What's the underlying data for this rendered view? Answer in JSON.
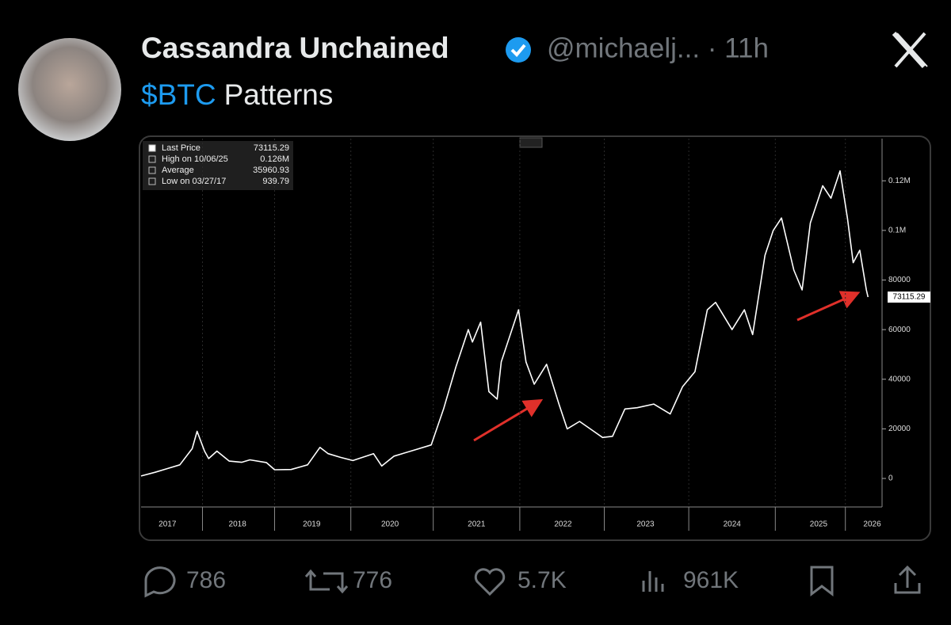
{
  "post": {
    "author": "Cassandra Unchained",
    "meta": "@michaelj... · 11h",
    "cashtag": "$BTC",
    "text": "Patterns",
    "stats": {
      "replies": "786",
      "reposts": "776",
      "likes": "5.7K",
      "views": "961K"
    }
  },
  "chart_data": {
    "type": "line",
    "color": "#ffffff",
    "legend_rows": [
      {
        "label": "Last Price",
        "value": "73115.29"
      },
      {
        "label": "High on 10/06/25",
        "value": "0.126M"
      },
      {
        "label": "Average",
        "value": "35960.93"
      },
      {
        "label": "Low on 03/27/17",
        "value": "939.79"
      }
    ],
    "last_price": 73115.29,
    "x": [
      2017.28,
      2017.45,
      2017.6,
      2017.75,
      2017.9,
      2017.96,
      2018.05,
      2018.1,
      2018.2,
      2018.35,
      2018.5,
      2018.6,
      2018.8,
      2018.9,
      2019.1,
      2019.3,
      2019.45,
      2019.55,
      2019.7,
      2019.85,
      2020.1,
      2020.2,
      2020.35,
      2020.6,
      2020.8,
      2020.95,
      2021.1,
      2021.25,
      2021.3,
      2021.4,
      2021.5,
      2021.6,
      2021.65,
      2021.8,
      2021.86,
      2021.95,
      2022.05,
      2022.2,
      2022.35,
      2022.45,
      2022.6,
      2022.75,
      2022.88,
      2023.0,
      2023.15,
      2023.3,
      2023.5,
      2023.7,
      2023.85,
      2024.0,
      2024.15,
      2024.25,
      2024.45,
      2024.6,
      2024.7,
      2024.85,
      2024.95,
      2025.05,
      2025.2,
      2025.3,
      2025.4,
      2025.55,
      2025.65,
      2025.76,
      2025.85,
      2025.92,
      2026.0,
      2026.08,
      2026.1
    ],
    "values": [
      1000,
      2500,
      4000,
      5500,
      12000,
      19000,
      11000,
      8000,
      11000,
      7000,
      6500,
      7500,
      6400,
      3500,
      3600,
      5500,
      12500,
      10000,
      8500,
      7200,
      10000,
      5000,
      9000,
      11500,
      13500,
      28000,
      45000,
      60000,
      55000,
      63000,
      35000,
      32000,
      47000,
      62000,
      68000,
      47000,
      38000,
      46000,
      30000,
      20000,
      23000,
      19500,
      16500,
      17000,
      28000,
      28500,
      30000,
      26000,
      37000,
      43000,
      68000,
      71000,
      60000,
      68000,
      58000,
      90000,
      100000,
      105000,
      84000,
      76000,
      103000,
      118000,
      113000,
      124000,
      105000,
      87000,
      92000,
      76000,
      73115.29
    ],
    "xlim": [
      2017.28,
      2026.27
    ],
    "xticks": [
      {
        "value": 2017.6,
        "label": "2017"
      },
      {
        "value": 2018.45,
        "label": "2018"
      },
      {
        "value": 2019.35,
        "label": "2019"
      },
      {
        "value": 2020.3,
        "label": "2020"
      },
      {
        "value": 2021.35,
        "label": "2021"
      },
      {
        "value": 2022.4,
        "label": "2022"
      },
      {
        "value": 2023.4,
        "label": "2023"
      },
      {
        "value": 2024.45,
        "label": "2024"
      },
      {
        "value": 2025.5,
        "label": "2025"
      },
      {
        "value": 2026.15,
        "label": "2026"
      }
    ],
    "ylim": [
      -11500,
      137000
    ],
    "yticks": [
      0,
      20000,
      40000,
      60000,
      80000,
      {
        "value": 100000,
        "label": "0.1M"
      },
      {
        "value": 120000,
        "label": "0.12M"
      }
    ]
  }
}
